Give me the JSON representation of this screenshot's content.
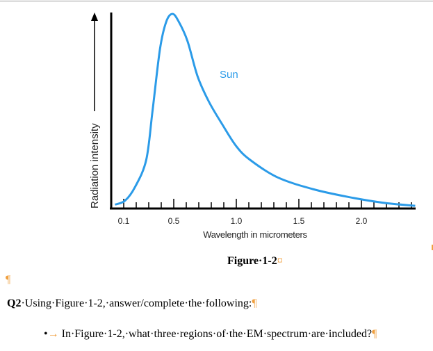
{
  "chart_data": {
    "type": "line",
    "xlabel": "Wavelength in micrometers",
    "ylabel": "Radiation intensity",
    "xlim": [
      0,
      2.45
    ],
    "ylim": [
      0,
      1.05
    ],
    "x_tick_labels": [
      "0.1",
      "0.5",
      "1.0",
      "1.5",
      "2.0"
    ],
    "x_tick_values": [
      0.1,
      0.5,
      1.0,
      1.5,
      2.0
    ],
    "minor_tick_step": 0.1,
    "grid": false,
    "series": [
      {
        "name": "Sun",
        "color": "#2b9be8",
        "x": [
          0.03,
          0.11,
          0.19,
          0.28,
          0.33,
          0.39,
          0.44,
          0.49,
          0.54,
          0.61,
          0.69,
          0.78,
          0.89,
          1.0,
          1.11,
          1.33,
          1.61,
          1.89,
          2.17,
          2.43
        ],
        "y": [
          0.02,
          0.04,
          0.11,
          0.25,
          0.5,
          0.82,
          0.96,
          1.0,
          0.96,
          0.86,
          0.68,
          0.55,
          0.43,
          0.32,
          0.25,
          0.16,
          0.1,
          0.06,
          0.03,
          0.014
        ]
      }
    ]
  },
  "document": {
    "caption": "Figure·1-2",
    "caption_mark": "¤",
    "pilcrow": "¶",
    "q2_label": "Q2",
    "q2_text": "·Using·Figure·1-2,·answer/complete·the·following:",
    "q2_end": "¶",
    "bullet_symbol": "•",
    "bullet_arrow": "→",
    "bullet_text": "In·Figure·1-2,·what·three·regions·of·the·EM·spectrum·are·included?",
    "bullet_end": "¶"
  }
}
